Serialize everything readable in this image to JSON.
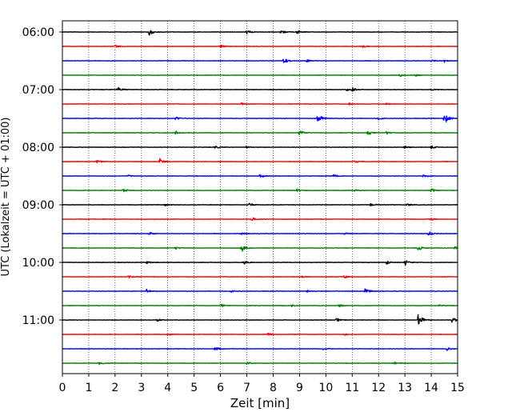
{
  "chart_data": {
    "type": "line",
    "title": "",
    "xlabel": "Zeit  [min]",
    "ylabel": "UTC (Lokalzeit = UTC + 01:00)",
    "xlim": [
      0,
      15
    ],
    "x_ticks": [
      "0",
      "1",
      "2",
      "3",
      "4",
      "5",
      "6",
      "7",
      "8",
      "9",
      "10",
      "11",
      "12",
      "13",
      "14",
      "15"
    ],
    "y_ticks": [
      "06:00",
      "07:00",
      "08:00",
      "09:00",
      "10:00",
      "11:00"
    ],
    "grid": "vertical dotted",
    "trace_interval_min": 15,
    "colors_cycle": [
      "#000000",
      "#ff0000",
      "#0000ff",
      "#008000"
    ],
    "series": [
      {
        "start": "06:00",
        "events": [
          [
            3.3,
            1.0
          ],
          [
            7.0,
            0.6
          ],
          [
            8.3,
            0.6
          ],
          [
            8.9,
            0.6
          ]
        ]
      },
      {
        "start": "06:15",
        "events": [
          [
            2.0,
            0.4
          ],
          [
            6.0,
            0.5
          ],
          [
            11.4,
            0.3
          ]
        ]
      },
      {
        "start": "06:30",
        "events": [
          [
            8.4,
            0.8
          ],
          [
            9.3,
            0.5
          ],
          [
            14.0,
            0.4
          ],
          [
            14.5,
            0.4
          ]
        ]
      },
      {
        "start": "06:45",
        "events": [
          [
            12.8,
            0.5
          ],
          [
            13.4,
            0.3
          ]
        ]
      },
      {
        "start": "07:00",
        "events": [
          [
            2.1,
            0.8
          ],
          [
            11.0,
            0.5
          ],
          [
            10.8,
            0.4
          ],
          [
            14.0,
            0.3
          ]
        ]
      },
      {
        "start": "07:15",
        "events": [
          [
            6.8,
            0.4
          ],
          [
            10.9,
            0.4
          ],
          [
            12.3,
            0.3
          ]
        ]
      },
      {
        "start": "07:30",
        "events": [
          [
            9.7,
            2.2
          ],
          [
            14.5,
            1.8
          ],
          [
            4.3,
            0.5
          ],
          [
            12.0,
            0.4
          ]
        ]
      },
      {
        "start": "07:45",
        "events": [
          [
            9.0,
            0.9
          ],
          [
            11.6,
            1.0
          ],
          [
            4.3,
            0.5
          ],
          [
            12.3,
            0.4
          ]
        ]
      },
      {
        "start": "08:00",
        "events": [
          [
            7.0,
            0.4
          ],
          [
            13.0,
            0.4
          ],
          [
            14.0,
            0.5
          ],
          [
            5.8,
            0.4
          ]
        ]
      },
      {
        "start": "08:15",
        "events": [
          [
            1.3,
            0.5
          ],
          [
            3.7,
            1.0
          ],
          [
            11.1,
            0.4
          ],
          [
            5.9,
            0.3
          ]
        ]
      },
      {
        "start": "08:30",
        "events": [
          [
            7.5,
            0.5
          ],
          [
            10.3,
            0.5
          ],
          [
            13.7,
            0.4
          ],
          [
            2.5,
            0.3
          ]
        ]
      },
      {
        "start": "08:45",
        "events": [
          [
            2.3,
            0.5
          ],
          [
            14.0,
            0.6
          ],
          [
            8.9,
            0.4
          ],
          [
            11.1,
            0.3
          ]
        ]
      },
      {
        "start": "09:00",
        "events": [
          [
            7.1,
            0.5
          ],
          [
            13.1,
            0.4
          ],
          [
            11.7,
            0.4
          ],
          [
            3.9,
            0.3
          ]
        ]
      },
      {
        "start": "09:15",
        "events": [
          [
            7.2,
            0.6
          ],
          [
            14.0,
            0.3
          ]
        ]
      },
      {
        "start": "09:30",
        "events": [
          [
            3.3,
            0.5
          ],
          [
            13.9,
            0.7
          ],
          [
            6.8,
            0.4
          ],
          [
            10.7,
            0.3
          ]
        ]
      },
      {
        "start": "09:45",
        "events": [
          [
            6.8,
            1.2
          ],
          [
            13.5,
            0.8
          ],
          [
            4.3,
            0.4
          ],
          [
            14.9,
            0.5
          ]
        ]
      },
      {
        "start": "10:00",
        "events": [
          [
            13.0,
            1.0
          ],
          [
            12.3,
            0.6
          ],
          [
            6.9,
            0.5
          ],
          [
            3.2,
            0.4
          ]
        ]
      },
      {
        "start": "10:15",
        "events": [
          [
            2.5,
            0.4
          ],
          [
            10.7,
            0.4
          ],
          [
            9.1,
            0.3
          ]
        ]
      },
      {
        "start": "10:30",
        "events": [
          [
            3.2,
            0.7
          ],
          [
            11.5,
            0.9
          ],
          [
            9.3,
            0.3
          ],
          [
            6.4,
            0.3
          ]
        ]
      },
      {
        "start": "10:45",
        "events": [
          [
            6.0,
            0.6
          ],
          [
            10.5,
            0.5
          ],
          [
            8.7,
            0.3
          ],
          [
            14.3,
            0.3
          ]
        ]
      },
      {
        "start": "11:00",
        "events": [
          [
            13.5,
            2.3
          ],
          [
            14.8,
            1.0
          ],
          [
            10.4,
            0.6
          ],
          [
            3.6,
            0.4
          ]
        ]
      },
      {
        "start": "11:15",
        "events": [
          [
            7.8,
            0.6
          ],
          [
            4.0,
            0.3
          ],
          [
            10.7,
            0.3
          ]
        ]
      },
      {
        "start": "11:30",
        "events": [
          [
            5.8,
            0.6
          ],
          [
            14.6,
            0.5
          ],
          [
            9.9,
            0.3
          ]
        ]
      },
      {
        "start": "11:45",
        "events": [
          [
            1.4,
            0.4
          ],
          [
            7.0,
            0.5
          ],
          [
            12.6,
            0.3
          ]
        ]
      }
    ]
  }
}
